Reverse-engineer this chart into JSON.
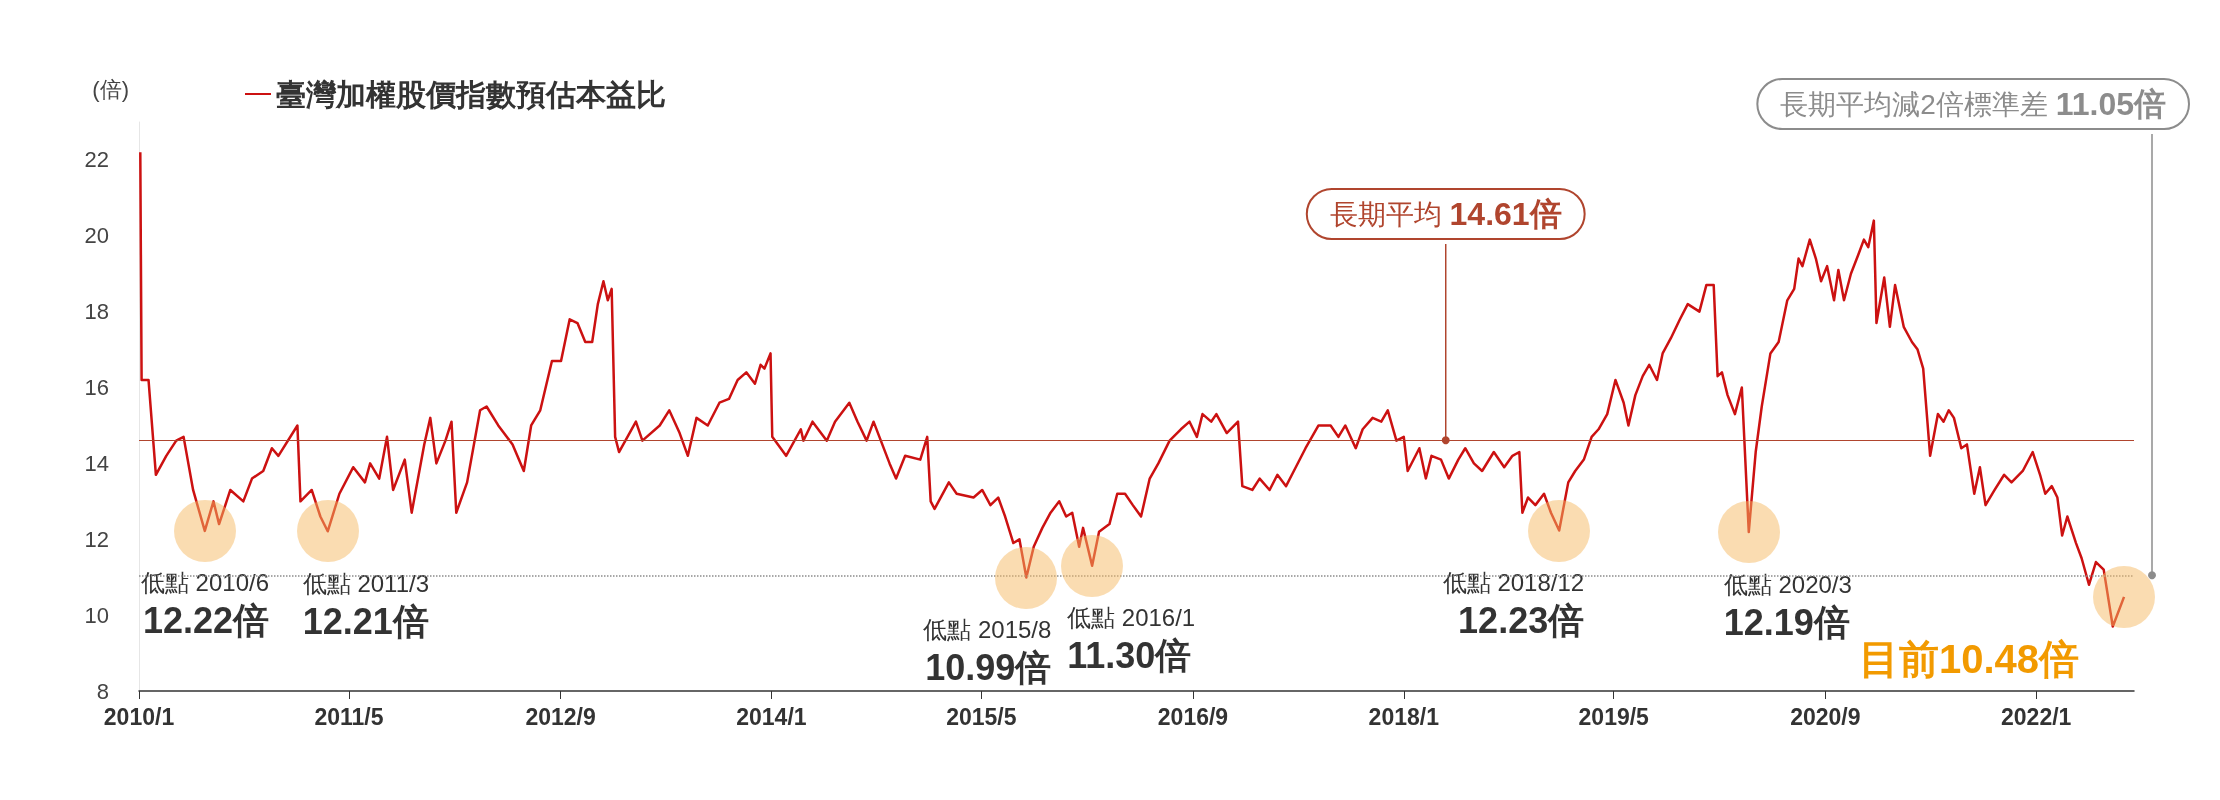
{
  "chart_data": {
    "type": "line",
    "ylabel": "(倍)",
    "legend": "top left",
    "marker": "none",
    "line_style": "solid",
    "grid": false,
    "xlim": [
      "2010-01-01",
      "2022-08-15"
    ],
    "xticks": [
      {
        "value": "2010-01",
        "label": "2010/1"
      },
      {
        "value": "2011-05",
        "label": "2011/5"
      },
      {
        "value": "2012-09",
        "label": "2012/9"
      },
      {
        "value": "2014-01",
        "label": "2014/1"
      },
      {
        "value": "2015-05",
        "label": "2015/5"
      },
      {
        "value": "2016-09",
        "label": "2016/9"
      },
      {
        "value": "2018-01",
        "label": "2018/1"
      },
      {
        "value": "2019-05",
        "label": "2019/5"
      },
      {
        "value": "2020-09",
        "label": "2020/9"
      },
      {
        "value": "2022-01",
        "label": "2022/1"
      }
    ],
    "ylim": [
      8,
      23
    ],
    "yticks": [
      8,
      10,
      12,
      14,
      16,
      18,
      20,
      22
    ],
    "x": [
      "2010-01-04",
      "2010-01-07",
      "2010-01-23",
      "2010-02-09",
      "2010-03-05",
      "2010-03-28",
      "2010-04-14",
      "2010-05-06",
      "2010-06-02",
      "2010-06-22",
      "2010-07-05",
      "2010-07-31",
      "2010-08-30",
      "2010-09-19",
      "2010-10-15",
      "2010-11-04",
      "2010-11-19",
      "2011-01-02",
      "2011-01-09",
      "2011-02-04",
      "2011-02-24",
      "2011-03-13",
      "2011-04-09",
      "2011-05-11",
      "2011-06-07",
      "2011-06-19",
      "2011-07-10",
      "2011-07-28",
      "2011-08-11",
      "2011-09-07",
      "2011-09-23",
      "2011-10-22",
      "2011-11-05",
      "2011-11-19",
      "2011-12-10",
      "2011-12-24",
      "2012-01-04",
      "2012-01-29",
      "2012-02-28",
      "2012-03-14",
      "2012-04-10",
      "2012-05-13",
      "2012-06-08",
      "2012-06-25",
      "2012-07-16",
      "2012-08-12",
      "2012-09-02",
      "2012-09-22",
      "2012-10-10",
      "2012-10-28",
      "2012-11-13",
      "2012-11-26",
      "2012-12-09",
      "2012-12-19",
      "2012-12-28",
      "2013-01-05",
      "2013-01-14",
      "2013-02-22",
      "2013-03-09",
      "2013-04-18",
      "2013-05-10",
      "2013-06-03",
      "2013-06-22",
      "2013-07-12",
      "2013-08-07",
      "2013-09-03",
      "2013-09-25",
      "2013-10-15",
      "2013-11-04",
      "2013-11-24",
      "2013-12-07",
      "2013-12-16",
      "2013-12-30",
      "2014-01-03",
      "2014-02-04",
      "2014-03-10",
      "2014-03-16",
      "2014-04-06",
      "2014-05-09",
      "2014-05-28",
      "2014-06-30",
      "2014-07-19",
      "2014-08-09",
      "2014-08-25",
      "2014-10-01",
      "2014-10-16",
      "2014-11-06",
      "2014-12-11",
      "2014-12-27",
      "2015-01-04",
      "2015-01-13",
      "2015-02-15",
      "2015-03-05",
      "2015-04-13",
      "2015-05-03",
      "2015-05-22",
      "2015-06-09",
      "2015-06-25",
      "2015-07-14",
      "2015-07-28",
      "2015-08-13",
      "2015-08-30",
      "2015-09-19",
      "2015-10-08",
      "2015-10-28",
      "2015-11-13",
      "2015-11-27",
      "2015-12-13",
      "2015-12-22",
      "2016-01-12",
      "2016-01-28",
      "2016-02-21",
      "2016-03-10",
      "2016-03-28",
      "2016-04-15",
      "2016-05-04",
      "2016-05-24",
      "2016-06-13",
      "2016-07-09",
      "2016-08-04",
      "2016-08-24",
      "2016-09-10",
      "2016-09-23",
      "2016-10-13",
      "2016-10-25",
      "2016-11-18",
      "2016-12-14",
      "2016-12-24",
      "2017-01-16",
      "2017-02-02",
      "2017-02-25",
      "2017-03-15",
      "2017-04-04",
      "2017-04-22",
      "2017-05-19",
      "2017-06-18",
      "2017-07-16",
      "2017-08-03",
      "2017-08-19",
      "2017-09-12",
      "2017-09-28",
      "2017-10-21",
      "2017-11-10",
      "2017-11-25",
      "2017-12-15",
      "2018-01-01",
      "2018-01-10",
      "2018-02-06",
      "2018-02-21",
      "2018-03-06",
      "2018-03-28",
      "2018-04-15",
      "2018-05-07",
      "2018-05-23",
      "2018-06-12",
      "2018-07-01",
      "2018-07-28",
      "2018-08-21",
      "2018-09-09",
      "2018-09-25",
      "2018-10-02",
      "2018-10-15",
      "2018-11-01",
      "2018-11-21",
      "2018-12-07",
      "2018-12-26",
      "2019-01-16",
      "2019-02-01",
      "2019-02-21",
      "2019-03-11",
      "2019-03-27",
      "2019-04-16",
      "2019-05-05",
      "2019-05-24",
      "2019-06-04",
      "2019-06-20",
      "2019-07-07",
      "2019-07-22",
      "2019-08-09",
      "2019-08-22",
      "2019-09-10",
      "2019-10-01",
      "2019-10-19",
      "2019-11-15",
      "2019-12-01",
      "2019-12-18",
      "2019-12-27",
      "2020-01-06",
      "2020-01-19",
      "2020-02-05",
      "2020-02-21",
      "2020-03-08",
      "2020-03-24",
      "2020-04-07",
      "2020-04-27",
      "2020-05-16",
      "2020-06-05",
      "2020-06-21",
      "2020-07-01",
      "2020-07-10",
      "2020-07-27",
      "2020-08-10",
      "2020-08-22",
      "2020-09-05",
      "2020-09-21",
      "2020-10-01",
      "2020-10-14",
      "2020-10-30",
      "2020-11-16",
      "2020-11-29",
      "2020-12-09",
      "2020-12-22",
      "2020-12-28",
      "2021-01-15",
      "2021-01-28",
      "2021-02-09",
      "2021-03-01",
      "2021-03-20",
      "2021-04-02",
      "2021-04-15",
      "2021-05-01",
      "2021-05-19",
      "2021-06-01",
      "2021-06-13",
      "2021-06-25",
      "2021-07-12",
      "2021-07-25",
      "2021-08-11",
      "2021-08-24",
      "2021-09-06",
      "2021-09-27",
      "2021-10-19",
      "2021-11-05",
      "2021-12-01",
      "2021-12-24",
      "2022-01-10",
      "2022-01-22",
      "2022-02-06",
      "2022-02-19",
      "2022-03-02",
      "2022-03-14",
      "2022-04-03",
      "2022-04-16",
      "2022-05-03",
      "2022-05-19",
      "2022-06-06",
      "2022-06-27",
      "2022-07-23"
    ],
    "series": [
      {
        "name": "臺灣加權股價指數預估本益比",
        "color": "#cc1111",
        "values": [
          22.2,
          16.2,
          16.2,
          13.7,
          14.2,
          14.6,
          14.7,
          13.3,
          12.22,
          13.0,
          12.4,
          13.3,
          13.0,
          13.6,
          13.8,
          14.4,
          14.2,
          15.0,
          13.0,
          13.3,
          12.6,
          12.21,
          13.2,
          13.9,
          13.5,
          14.0,
          13.6,
          14.7,
          13.3,
          14.1,
          12.7,
          14.5,
          15.2,
          14.0,
          14.6,
          15.1,
          12.7,
          13.5,
          15.4,
          15.5,
          15.0,
          14.5,
          13.8,
          15.0,
          15.4,
          16.7,
          16.7,
          17.8,
          17.7,
          17.2,
          17.2,
          18.2,
          18.8,
          18.3,
          18.6,
          14.7,
          14.3,
          15.1,
          14.6,
          15.0,
          15.4,
          14.8,
          14.2,
          15.2,
          15.0,
          15.6,
          15.7,
          16.2,
          16.4,
          16.1,
          16.6,
          16.5,
          16.9,
          14.7,
          14.2,
          14.9,
          14.6,
          15.1,
          14.6,
          15.1,
          15.6,
          15.1,
          14.6,
          15.1,
          14.0,
          13.6,
          14.2,
          14.1,
          14.7,
          13.0,
          12.8,
          13.5,
          13.2,
          13.1,
          13.3,
          12.9,
          13.1,
          12.6,
          11.9,
          12.0,
          10.99,
          11.8,
          12.3,
          12.7,
          13.0,
          12.6,
          12.7,
          11.8,
          12.3,
          11.3,
          12.2,
          12.4,
          13.2,
          13.2,
          12.9,
          12.6,
          13.6,
          14.0,
          14.6,
          14.9,
          15.1,
          14.7,
          15.3,
          15.1,
          15.3,
          14.8,
          15.1,
          13.4,
          13.3,
          13.6,
          13.3,
          13.7,
          13.4,
          13.8,
          14.4,
          15.0,
          15.0,
          14.7,
          15.0,
          14.4,
          14.9,
          15.2,
          15.1,
          15.4,
          14.6,
          14.7,
          13.8,
          14.4,
          13.6,
          14.2,
          14.1,
          13.6,
          14.1,
          14.4,
          14.0,
          13.8,
          14.3,
          13.9,
          14.2,
          14.3,
          12.7,
          13.1,
          12.9,
          13.2,
          12.7,
          12.23,
          13.5,
          13.8,
          14.1,
          14.7,
          14.9,
          15.3,
          16.2,
          15.6,
          15.0,
          15.8,
          16.3,
          16.6,
          16.2,
          16.9,
          17.3,
          17.8,
          18.2,
          18.0,
          18.7,
          18.7,
          16.3,
          16.4,
          15.8,
          15.3,
          16.0,
          12.19,
          14.3,
          15.5,
          16.9,
          17.2,
          18.3,
          18.6,
          19.4,
          19.2,
          19.9,
          19.4,
          18.8,
          19.2,
          18.3,
          19.1,
          18.3,
          19.0,
          19.5,
          19.9,
          19.7,
          20.4,
          17.7,
          18.9,
          17.6,
          18.7,
          17.6,
          17.2,
          17.0,
          16.5,
          14.2,
          15.3,
          15.1,
          15.4,
          15.2,
          14.4,
          14.5,
          13.2,
          13.9,
          12.9,
          13.3,
          13.7,
          13.5,
          13.8,
          14.3,
          13.7,
          13.2,
          13.4,
          13.1,
          12.1,
          12.6,
          11.9,
          11.5,
          10.8,
          11.4,
          11.2,
          9.7,
          10.48
        ]
      }
    ],
    "ref_lines": [
      {
        "axis": "y",
        "value": 14.61,
        "label": "長期平均 14.61倍",
        "color": "#b0452e",
        "line_style": "solid"
      },
      {
        "axis": "y",
        "value": 11.05,
        "label": "長期平均減2倍標準差 11.05倍",
        "color": "#8c8c8c",
        "line_style": "dotted"
      }
    ],
    "annotations": [
      {
        "text": "低點 2010/6\n12.22倍",
        "x": "2010-06-02",
        "y": 12.22
      },
      {
        "text": "低點 2011/3\n12.21倍",
        "x": "2011-03-13",
        "y": 12.21
      },
      {
        "text": "低點 2015/8\n10.99倍",
        "x": "2015-08-13",
        "y": 10.99
      },
      {
        "text": "低點 2016/1\n11.30倍",
        "x": "2016-01-12",
        "y": 11.3
      },
      {
        "text": "低點 2018/12\n12.23倍",
        "x": "2018-12-26",
        "y": 12.23
      },
      {
        "text": "低點 2020/3\n12.19倍",
        "x": "2020-03-08",
        "y": 12.19
      },
      {
        "text": "目前10.48倍",
        "x": "2022-07-23",
        "y": 10.48
      }
    ]
  }
}
